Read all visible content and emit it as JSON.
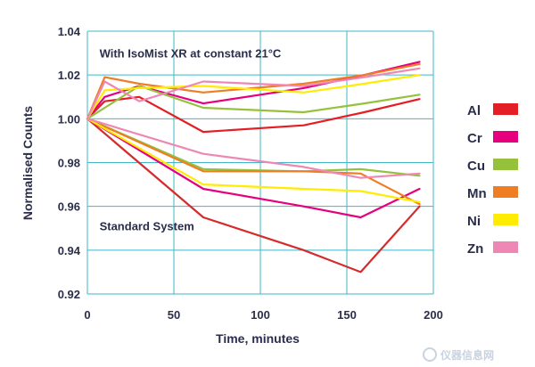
{
  "chart_data": {
    "type": "line",
    "title": "",
    "xlabel": "Time, minutes",
    "ylabel": "Normalised Counts",
    "xlim": [
      0,
      200
    ],
    "ylim": [
      0.92,
      1.04
    ],
    "xticks": [
      0,
      50,
      100,
      150,
      200
    ],
    "yticks": [
      0.92,
      0.94,
      0.96,
      0.98,
      1.0,
      1.02,
      1.04
    ],
    "ytick_labels": [
      "0.92",
      "0.94",
      "0.96",
      "0.98",
      "1.00",
      "1.02",
      "1.04"
    ],
    "grid": true,
    "legend_position": "right",
    "annotations": [
      {
        "text": "With IsoMist XR at constant 21°C",
        "group": "isomist"
      },
      {
        "text": "Standard System",
        "group": "standard"
      }
    ],
    "legend": [
      {
        "name": "Al",
        "color": "#e31e24"
      },
      {
        "name": "Cr",
        "color": "#e6007e"
      },
      {
        "name": "Cu",
        "color": "#95c13d"
      },
      {
        "name": "Mn",
        "color": "#ee7d23"
      },
      {
        "name": "Ni",
        "color": "#ffec00"
      },
      {
        "name": "Zn",
        "color": "#ee87b4"
      }
    ],
    "series": [
      {
        "name": "Al",
        "group": "isomist",
        "color": "#e31e24",
        "x": [
          0,
          10,
          30,
          67,
          125,
          160,
          192
        ],
        "y": [
          1.0,
          1.008,
          1.01,
          0.994,
          0.997,
          1.003,
          1.009
        ]
      },
      {
        "name": "Cr",
        "group": "isomist",
        "color": "#e6007e",
        "x": [
          0,
          10,
          30,
          67,
          125,
          160,
          192
        ],
        "y": [
          1.0,
          1.01,
          1.015,
          1.007,
          1.014,
          1.02,
          1.026
        ]
      },
      {
        "name": "Cu",
        "group": "isomist",
        "color": "#95c13d",
        "x": [
          0,
          10,
          30,
          67,
          125,
          160,
          192
        ],
        "y": [
          1.0,
          1.005,
          1.015,
          1.005,
          1.003,
          1.007,
          1.011
        ]
      },
      {
        "name": "Mn",
        "group": "isomist",
        "color": "#ee7d23",
        "x": [
          0,
          10,
          30,
          67,
          125,
          160,
          192
        ],
        "y": [
          1.0,
          1.019,
          1.016,
          1.012,
          1.016,
          1.02,
          1.025
        ]
      },
      {
        "name": "Ni",
        "group": "isomist",
        "color": "#ffec00",
        "x": [
          0,
          10,
          30,
          67,
          125,
          160,
          192
        ],
        "y": [
          1.0,
          1.013,
          1.014,
          1.015,
          1.012,
          1.016,
          1.02
        ]
      },
      {
        "name": "Zn",
        "group": "isomist",
        "color": "#ee87b4",
        "x": [
          0,
          10,
          30,
          67,
          125,
          160,
          192
        ],
        "y": [
          1.0,
          1.017,
          1.008,
          1.017,
          1.015,
          1.019,
          1.023
        ]
      },
      {
        "name": "Al",
        "group": "standard",
        "color": "#d42c2c",
        "x": [
          0,
          67,
          125,
          158,
          192
        ],
        "y": [
          1.0,
          0.955,
          0.94,
          0.93,
          0.96
        ]
      },
      {
        "name": "Cr",
        "group": "standard",
        "color": "#e6007e",
        "x": [
          0,
          67,
          125,
          158,
          192
        ],
        "y": [
          1.0,
          0.968,
          0.96,
          0.955,
          0.968
        ]
      },
      {
        "name": "Cu",
        "group": "standard",
        "color": "#95c13d",
        "x": [
          0,
          67,
          125,
          158,
          192
        ],
        "y": [
          1.0,
          0.977,
          0.976,
          0.977,
          0.974
        ]
      },
      {
        "name": "Mn",
        "group": "standard",
        "color": "#ee7d23",
        "x": [
          0,
          67,
          125,
          158,
          192
        ],
        "y": [
          1.0,
          0.976,
          0.976,
          0.975,
          0.961
        ]
      },
      {
        "name": "Ni",
        "group": "standard",
        "color": "#ffec00",
        "x": [
          0,
          67,
          125,
          158,
          192
        ],
        "y": [
          1.0,
          0.97,
          0.968,
          0.967,
          0.962
        ]
      },
      {
        "name": "Zn",
        "group": "standard",
        "color": "#ee87b4",
        "x": [
          0,
          67,
          125,
          158,
          192
        ],
        "y": [
          1.0,
          0.984,
          0.978,
          0.973,
          0.975
        ]
      }
    ]
  },
  "watermark": {
    "text": "仪器信息网"
  }
}
